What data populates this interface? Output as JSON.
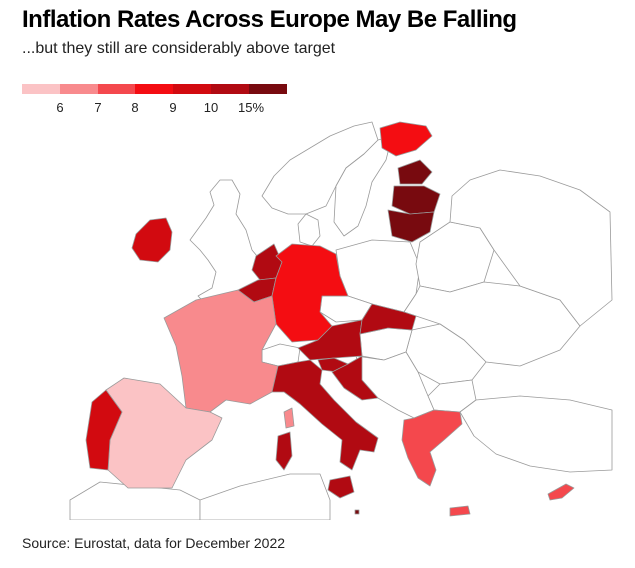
{
  "title": "Inflation Rates Across Europe May Be Falling",
  "subtitle": "...but they still are considerably above target",
  "legend": {
    "colors": [
      "#fbc3c5",
      "#f88a8d",
      "#f4484d",
      "#f40d12",
      "#d20a10",
      "#b10a12",
      "#780a0f"
    ],
    "ticks": [
      "6",
      "7",
      "8",
      "9",
      "10",
      "15%"
    ]
  },
  "colors": {
    "no_data": "#ffffff",
    "border": "#9a9a9a",
    "sea": "#ffffff"
  },
  "source": "Source: Eurostat, data for December 2022"
}
